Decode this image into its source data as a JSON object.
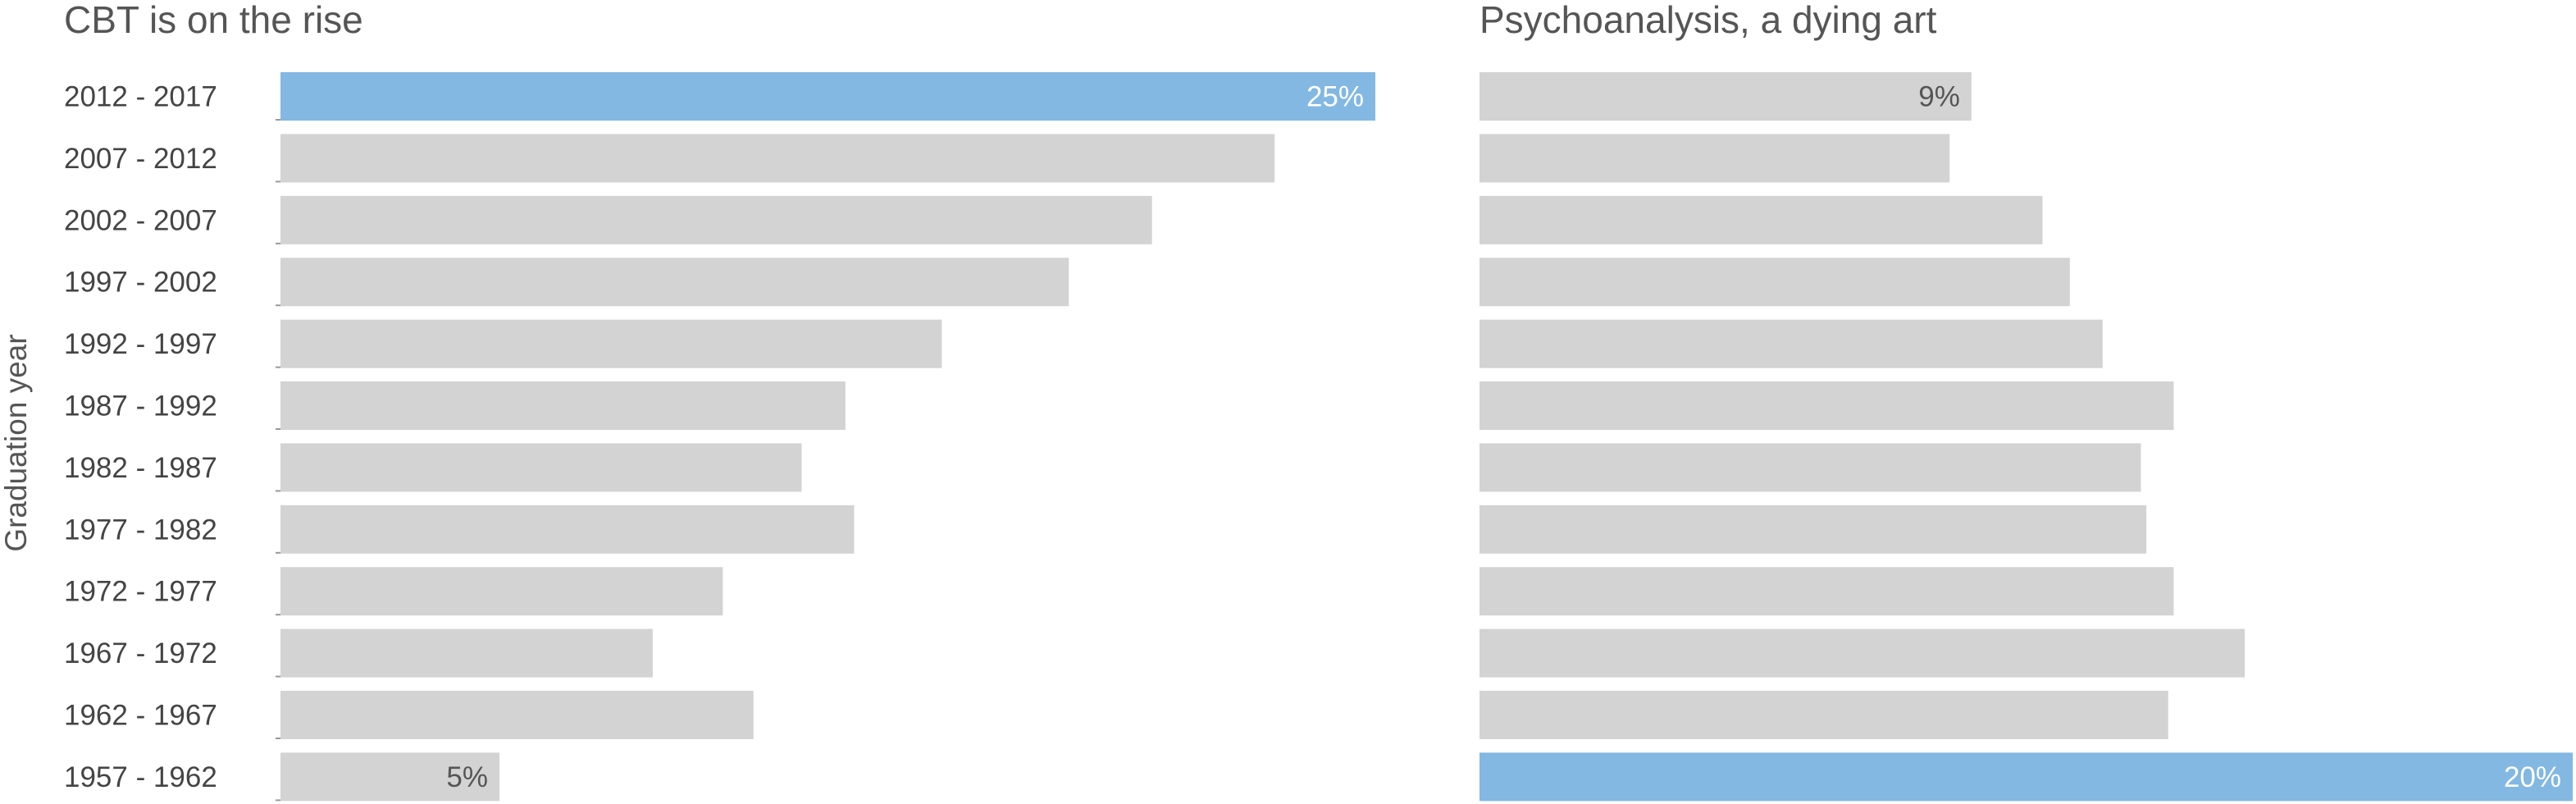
{
  "chart_data": [
    {
      "type": "bar",
      "orientation": "horizontal",
      "title": "CBT is on the rise",
      "ylabel": "Graduation year",
      "categories": [
        "2012 - 2017",
        "2007 - 2012",
        "2002 - 2007",
        "1997 - 2002",
        "1992 - 1997",
        "1987 - 1992",
        "1982 - 1987",
        "1977 - 1982",
        "1972 - 1977",
        "1967 - 1972",
        "1962 - 1967",
        "1957 - 1962"
      ],
      "values": [
        25,
        22.7,
        19.9,
        18.0,
        15.1,
        12.9,
        11.9,
        13.1,
        10.1,
        8.5,
        10.8,
        5
      ],
      "value_labels": [
        "25%",
        "",
        "",
        "",
        "",
        "",
        "",
        "",
        "",
        "",
        "",
        "5%"
      ],
      "highlight_index": 0,
      "xlim": [
        0,
        25
      ],
      "grid": false
    },
    {
      "type": "bar",
      "orientation": "horizontal",
      "title": "Psychoanalysis, a dying art",
      "categories": [
        "2012 - 2017",
        "2007 - 2012",
        "2002 - 2007",
        "1997 - 2002",
        "1992 - 1997",
        "1987 - 1992",
        "1982 - 1987",
        "1977 - 1982",
        "1972 - 1977",
        "1967 - 1972",
        "1962 - 1967",
        "1957 - 1962"
      ],
      "values": [
        9,
        8.6,
        10.3,
        10.8,
        11.4,
        12.7,
        12.1,
        12.2,
        12.7,
        14.0,
        12.6,
        20
      ],
      "value_labels": [
        "9%",
        "",
        "",
        "",
        "",
        "",
        "",
        "",
        "",
        "",
        "",
        "20%"
      ],
      "highlight_index": 11,
      "xlim": [
        0,
        20
      ],
      "grid": false
    }
  ],
  "colors": {
    "bar": "#d3d3d3",
    "highlight": "#82b8e2",
    "text": "#444444",
    "label_on_highlight": "#ffffff",
    "label_on_grey": "#555555"
  }
}
